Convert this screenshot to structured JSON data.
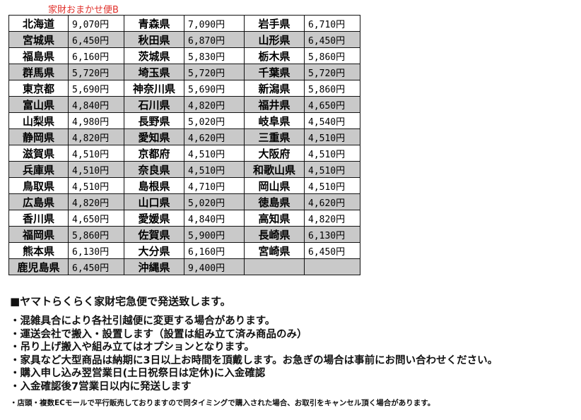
{
  "title": "家財おまかせ便B",
  "rows": [
    [
      [
        "北海道",
        "9,070円"
      ],
      [
        "青森県",
        "7,090円"
      ],
      [
        "岩手県",
        "6,710円"
      ]
    ],
    [
      [
        "宮城県",
        "6,450円"
      ],
      [
        "秋田県",
        "6,870円"
      ],
      [
        "山形県",
        "6,450円"
      ]
    ],
    [
      [
        "福島県",
        "6,160円"
      ],
      [
        "茨城県",
        "5,830円"
      ],
      [
        "栃木県",
        "5,860円"
      ]
    ],
    [
      [
        "群馬県",
        "5,720円"
      ],
      [
        "埼玉県",
        "5,720円"
      ],
      [
        "千葉県",
        "5,720円"
      ]
    ],
    [
      [
        "東京都",
        "5,690円"
      ],
      [
        "神奈川県",
        "5,690円"
      ],
      [
        "新潟県",
        "5,860円"
      ]
    ],
    [
      [
        "富山県",
        "4,840円"
      ],
      [
        "石川県",
        "4,820円"
      ],
      [
        "福井県",
        "4,650円"
      ]
    ],
    [
      [
        "山梨県",
        "4,980円"
      ],
      [
        "長野県",
        "5,020円"
      ],
      [
        "岐阜県",
        "4,540円"
      ]
    ],
    [
      [
        "静岡県",
        "4,820円"
      ],
      [
        "愛知県",
        "4,620円"
      ],
      [
        "三重県",
        "4,510円"
      ]
    ],
    [
      [
        "滋賀県",
        "4,510円"
      ],
      [
        "京都府",
        "4,510円"
      ],
      [
        "大阪府",
        "4,510円"
      ]
    ],
    [
      [
        "兵庫県",
        "4,510円"
      ],
      [
        "奈良県",
        "4,510円"
      ],
      [
        "和歌山県",
        "4,510円"
      ]
    ],
    [
      [
        "鳥取県",
        "4,510円"
      ],
      [
        "島根県",
        "4,710円"
      ],
      [
        "岡山県",
        "4,510円"
      ]
    ],
    [
      [
        "広島県",
        "4,820円"
      ],
      [
        "山口県",
        "5,020円"
      ],
      [
        "徳島県",
        "4,620円"
      ]
    ],
    [
      [
        "香川県",
        "4,650円"
      ],
      [
        "愛媛県",
        "4,840円"
      ],
      [
        "高知県",
        "4,820円"
      ]
    ],
    [
      [
        "福岡県",
        "5,860円"
      ],
      [
        "佐賀県",
        "5,900円"
      ],
      [
        "長崎県",
        "6,130円"
      ]
    ],
    [
      [
        "熊本県",
        "6,130円"
      ],
      [
        "大分県",
        "6,160円"
      ],
      [
        "宮崎県",
        "6,450円"
      ]
    ],
    [
      [
        "鹿児島県",
        "6,450円"
      ],
      [
        "沖縄県",
        "9,400円"
      ],
      [
        "",
        ""
      ]
    ]
  ],
  "notes": {
    "heading": "■ヤマトらくらく家財宅急便で発送致します。",
    "bullets": [
      "・混雑具合により各社引越便に変更する場合があります。",
      "・運送会社で搬入・設置します（設置は組み立て済み商品のみ）",
      "・吊り上げ搬入や組み立てはオプションとなります。",
      "・家具など大型商品は納期に3日以上お時間を頂戴します。お急ぎの場合は事前にお問い合わせください。",
      "・購入申し込み翌営業日(土日祝祭日は定休)に入金確認",
      "・入金確認後7営業日以内に発送します"
    ],
    "footnote": "・店頭・複数ECモールで平行販売しておりますので同タイミングで購入された場合、お取引をキャンセル頂く場合があります。"
  }
}
